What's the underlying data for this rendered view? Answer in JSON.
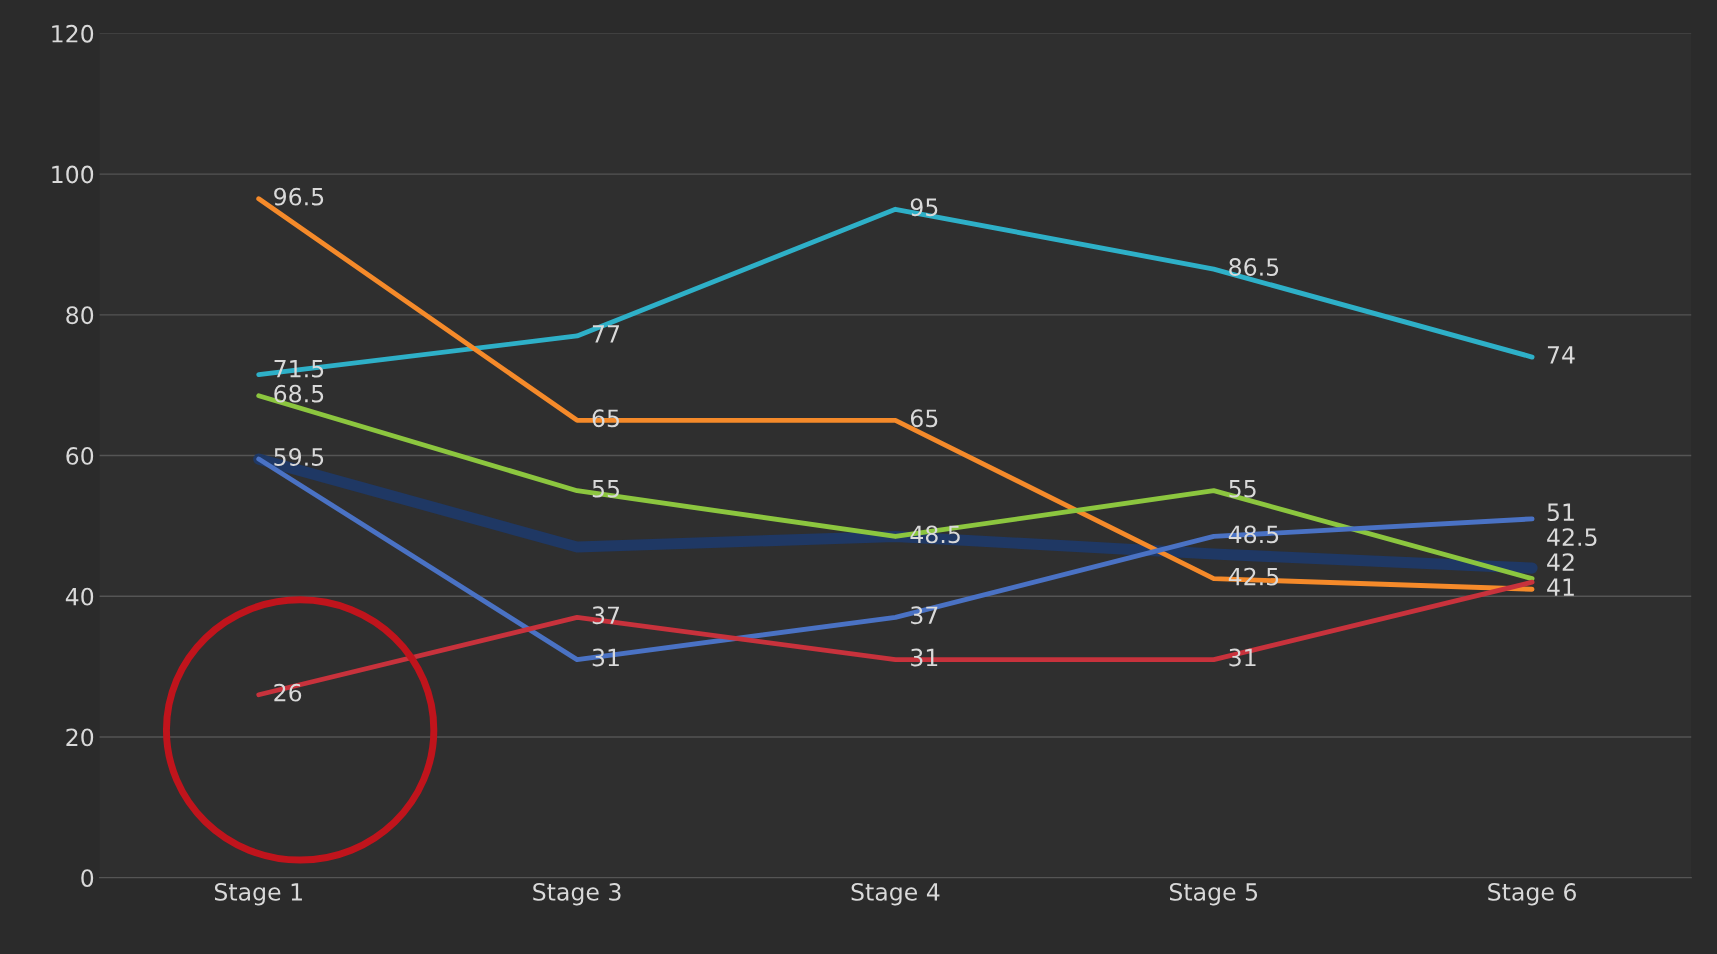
{
  "chart_data": {
    "type": "line",
    "categories": [
      "Stage 1",
      "Stage 3",
      "Stage 4",
      "Stage 5",
      "Stage 6"
    ],
    "ylim": [
      0,
      120
    ],
    "yticks": [
      0,
      20,
      40,
      60,
      80,
      100,
      120
    ],
    "grid": "y",
    "marker": "none",
    "line_style": "solid",
    "series": [
      {
        "color": "#1f3864",
        "values": [
          59.5,
          47,
          48.5,
          46,
          44
        ]
      },
      {
        "color": "#2eb0c8",
        "values": [
          71.5,
          77,
          95,
          86.5,
          74
        ],
        "value_labels": [
          "71.5",
          "77",
          "95",
          "86.5",
          "74"
        ]
      },
      {
        "color": "#f58a2a",
        "values": [
          96.5,
          65,
          65,
          42.5,
          41
        ],
        "value_labels": [
          "96.5",
          "65",
          "65",
          "42.5",
          "41"
        ]
      },
      {
        "color": "#8cc63f",
        "values": [
          68.5,
          55,
          48.5,
          55,
          42.5
        ],
        "value_labels": [
          "68.5",
          "55",
          "48.5",
          "55",
          "42.5"
        ]
      },
      {
        "color": "#4a72c4",
        "values": [
          59.5,
          31,
          37,
          48.5,
          51
        ],
        "value_labels": [
          "59.5",
          "31",
          "37",
          "48.5",
          "51"
        ]
      },
      {
        "color": "#c8323c",
        "values": [
          26,
          37,
          31,
          31,
          42
        ],
        "value_labels": [
          "26",
          "37",
          "31",
          "31",
          "42"
        ]
      }
    ]
  }
}
